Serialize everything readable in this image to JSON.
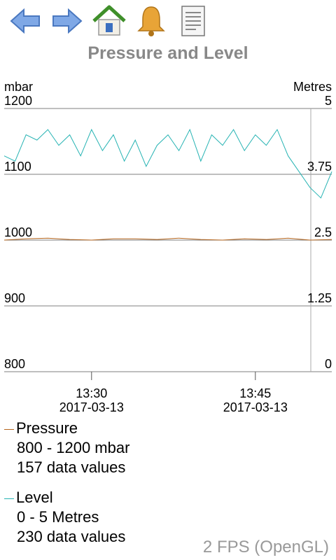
{
  "toolbar": {
    "icons": [
      "back-arrow-icon",
      "forward-arrow-icon",
      "home-icon",
      "bell-icon",
      "document-icon"
    ]
  },
  "title": "Pressure and Level",
  "axes": {
    "left_unit": "mbar",
    "right_unit": "Metres",
    "left_ticks": [
      "1200",
      "1100",
      "1000",
      "900",
      "800"
    ],
    "right_ticks": [
      "5",
      "3.75",
      "2.5",
      "1.25",
      "0"
    ],
    "x_ticks": [
      {
        "time": "13:30",
        "date": "2017-03-13"
      },
      {
        "time": "13:45",
        "date": "2017-03-13"
      }
    ]
  },
  "legend": {
    "pressure": {
      "name": "Pressure",
      "range": "800 - 1200 mbar",
      "count": "157 data values",
      "color": "#b5651d"
    },
    "level": {
      "name": "Level",
      "range": "0 - 5 Metres",
      "count": "230 data values",
      "color": "#26b3b3"
    }
  },
  "fps": "2 FPS (OpenGL)",
  "chart_data": {
    "type": "line",
    "x_label_format": "HH:MM",
    "x_range": [
      "13:22",
      "13:52"
    ],
    "cursor_time": "13:50",
    "left_axis": {
      "unit": "mbar",
      "ylim": [
        800,
        1200
      ]
    },
    "right_axis": {
      "unit": "Metres",
      "ylim": [
        0,
        5
      ]
    },
    "grid": true,
    "series": [
      {
        "name": "Pressure",
        "axis": "left",
        "color": "#b5651d",
        "x": [
          "13:22",
          "13:24",
          "13:26",
          "13:28",
          "13:30",
          "13:32",
          "13:34",
          "13:36",
          "13:38",
          "13:40",
          "13:42",
          "13:44",
          "13:46",
          "13:48",
          "13:50",
          "13:52"
        ],
        "y": [
          1000,
          1002,
          1003,
          1001,
          1000,
          1002,
          1002,
          1001,
          1003,
          1001,
          1000,
          1002,
          1001,
          1003,
          1000,
          1001
        ]
      },
      {
        "name": "Level",
        "axis": "right",
        "color": "#26b3b3",
        "x": [
          "13:22",
          "13:23",
          "13:24",
          "13:25",
          "13:26",
          "13:27",
          "13:28",
          "13:29",
          "13:30",
          "13:31",
          "13:32",
          "13:33",
          "13:34",
          "13:35",
          "13:36",
          "13:37",
          "13:38",
          "13:39",
          "13:40",
          "13:41",
          "13:42",
          "13:43",
          "13:44",
          "13:45",
          "13:46",
          "13:47",
          "13:48",
          "13:49",
          "13:50",
          "13:51",
          "13:52"
        ],
        "y": [
          4.1,
          4.0,
          4.5,
          4.4,
          4.6,
          4.3,
          4.5,
          4.1,
          4.6,
          4.2,
          4.5,
          4.0,
          4.4,
          3.9,
          4.3,
          4.5,
          4.2,
          4.6,
          4.0,
          4.5,
          4.3,
          4.6,
          4.2,
          4.5,
          4.3,
          4.6,
          4.1,
          3.8,
          3.5,
          3.3,
          3.8
        ]
      }
    ]
  }
}
